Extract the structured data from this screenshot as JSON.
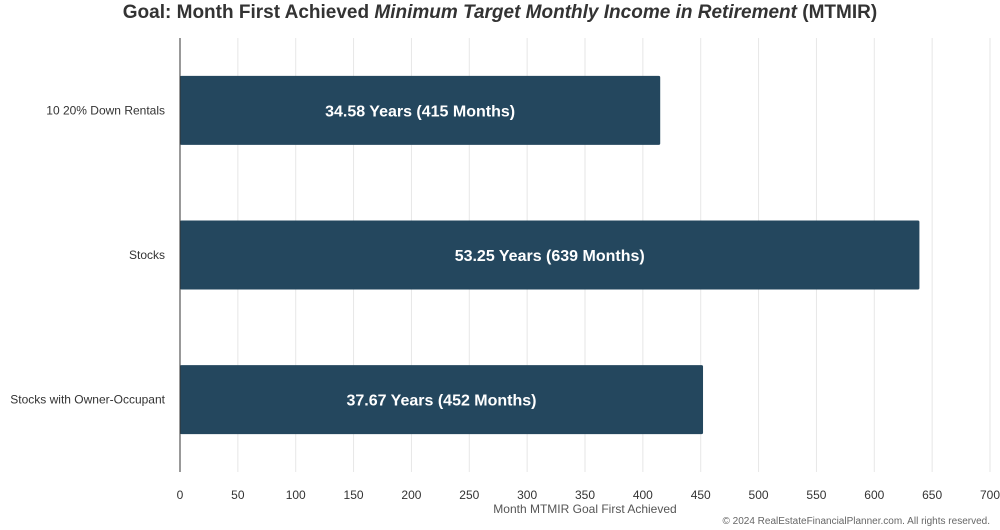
{
  "chart_data": {
    "type": "bar",
    "orientation": "horizontal",
    "title_prefix": "Goal: Month First Achieved ",
    "title_italic": "Minimum Target Monthly Income in Retirement",
    "title_suffix": " (MTMIR)",
    "xlabel": "Month MTMIR Goal First Achieved",
    "ylabel": "",
    "categories": [
      "10 20% Down Rentals",
      "Stocks",
      "Stocks with Owner-Occupant"
    ],
    "values": [
      415,
      639,
      452
    ],
    "data_labels": [
      "34.58 Years (415 Months)",
      "53.25 Years (639 Months)",
      "37.67 Years (452 Months)"
    ],
    "xlim": [
      0,
      700
    ],
    "xticks": [
      0,
      50,
      100,
      150,
      200,
      250,
      300,
      350,
      400,
      450,
      500,
      550,
      600,
      650,
      700
    ],
    "grid": true,
    "legend": "none",
    "bar_color": "#24475e",
    "label_color": "#ffffff"
  },
  "footer": {
    "copyright": "© 2024 RealEstateFinancialPlanner.com. All rights reserved."
  }
}
